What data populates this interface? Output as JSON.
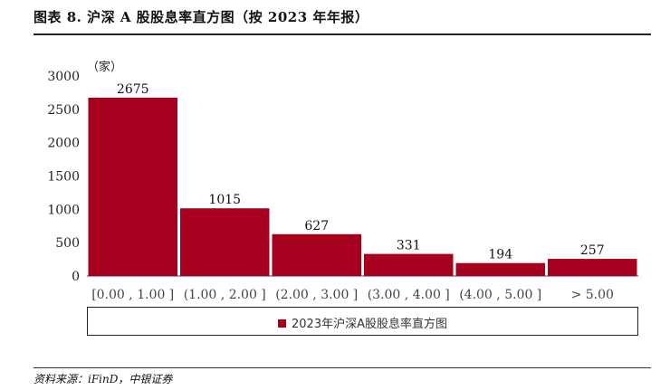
{
  "figure": {
    "title": "图表 8. 沪深 A 股股息率直方图（按 2023 年年报）",
    "source": "资料来源：iFinD，中银证券"
  },
  "chart_data": {
    "type": "bar",
    "title": "",
    "unit_label": "（家）",
    "categories": [
      "[0.00 , 1.00 ]",
      "(1.00 , 2.00 ]",
      "(2.00 , 3.00 ]",
      "(3.00 , 4.00 ]",
      "(4.00 , 5.00 ]",
      "> 5.00"
    ],
    "series": [
      {
        "name": "2023年沪深A股股息率直方图",
        "values": [
          2675,
          1015,
          627,
          331,
          194,
          257
        ],
        "color": "#a6001f"
      }
    ],
    "ylim": [
      0,
      3000
    ],
    "yticks": [
      "0",
      "500",
      "1000",
      "1500",
      "2000",
      "2500",
      "3000"
    ],
    "grid": false,
    "legend": "bottom"
  }
}
